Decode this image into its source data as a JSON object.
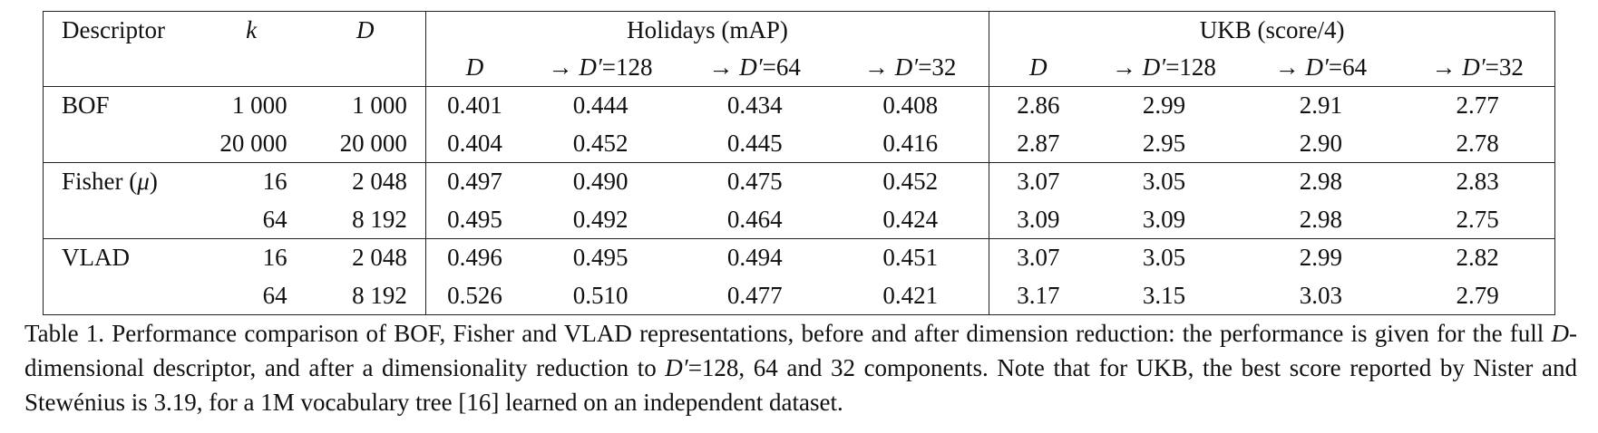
{
  "table": {
    "header": {
      "descriptor": "Descriptor",
      "k": "k",
      "D": "D",
      "holidays": "Holidays (mAP)",
      "ukb": "UKB (score/4)",
      "sub": [
        {
          "sym": "D",
          "arrow": "",
          "rest": ""
        },
        {
          "sym": "D′",
          "arrow": "→ ",
          "rest": "=128"
        },
        {
          "sym": "D′",
          "arrow": "→ ",
          "rest": "=64"
        },
        {
          "sym": "D′",
          "arrow": "→ ",
          "rest": "=32"
        },
        {
          "sym": "D",
          "arrow": "",
          "rest": ""
        },
        {
          "sym": "D′",
          "arrow": "→ ",
          "rest": "=128"
        },
        {
          "sym": "D′",
          "arrow": "→ ",
          "rest": "=64"
        },
        {
          "sym": "D′",
          "arrow": "→ ",
          "rest": "=32"
        }
      ]
    },
    "groups": [
      {
        "name": "BOF",
        "name_math": "",
        "rows": [
          {
            "k": "1 000",
            "D": "1 000",
            "holidays": [
              "0.401",
              "0.444",
              "0.434",
              "0.408"
            ],
            "ukb": [
              "2.86",
              "2.99",
              "2.91",
              "2.77"
            ]
          },
          {
            "k": "20 000",
            "D": "20 000",
            "holidays": [
              "0.404",
              "0.452",
              "0.445",
              "0.416"
            ],
            "ukb": [
              "2.87",
              "2.95",
              "2.90",
              "2.78"
            ]
          }
        ]
      },
      {
        "name": "Fisher (",
        "name_math": "μ",
        "name_end": ")",
        "rows": [
          {
            "k": "16",
            "D": "2 048",
            "holidays": [
              "0.497",
              "0.490",
              "0.475",
              "0.452"
            ],
            "ukb": [
              "3.07",
              "3.05",
              "2.98",
              "2.83"
            ]
          },
          {
            "k": "64",
            "D": "8 192",
            "holidays": [
              "0.495",
              "0.492",
              "0.464",
              "0.424"
            ],
            "ukb": [
              "3.09",
              "3.09",
              "2.98",
              "2.75"
            ]
          }
        ]
      },
      {
        "name": "VLAD",
        "name_math": "",
        "rows": [
          {
            "k": "16",
            "D": "2 048",
            "holidays": [
              "0.496",
              "0.495",
              "0.494",
              "0.451"
            ],
            "ukb": [
              "3.07",
              "3.05",
              "2.99",
              "2.82"
            ]
          },
          {
            "k": "64",
            "D": "8 192",
            "holidays": [
              "0.526",
              "0.510",
              "0.477",
              "0.421"
            ],
            "ukb": [
              "3.17",
              "3.15",
              "3.03",
              "2.79"
            ]
          }
        ]
      }
    ]
  },
  "caption": {
    "p1": "Table 1. Performance comparison of BOF, Fisher and VLAD representations, before and after dimension reduction: the performance is given for the full ",
    "m1": "D",
    "p2": "-dimensional descriptor, and after a dimensionality reduction to ",
    "m2": "D′",
    "p3": "=128, 64 and 32 components. Note that for UKB, the best score reported by Nister and Stewénius is 3.19, for a 1M vocabulary tree [16] learned on an independent dataset."
  }
}
